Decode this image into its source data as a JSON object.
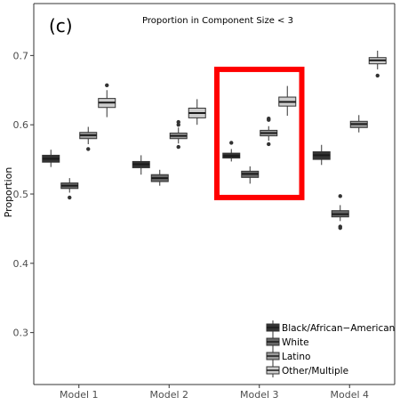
{
  "panel_label": "(c)",
  "chart_data": {
    "type": "boxplot",
    "title": "Proportion in Component Size < 3",
    "xlabel": "",
    "ylabel": "Proportion",
    "ylim": [
      0.225,
      0.775
    ],
    "yticks": [
      0.3,
      0.4,
      0.5,
      0.6,
      0.7
    ],
    "ytick_labels": [
      "0.3",
      "0.4",
      "0.5",
      "0.6",
      "0.7"
    ],
    "grid": false,
    "legend_position": "bottom-right",
    "categories": [
      "Model 1",
      "Model 2",
      "Model 3",
      "Model 4"
    ],
    "series": [
      {
        "name": "Black/African−American",
        "color": "#333333",
        "boxes": [
          {
            "whislo": 0.539,
            "q1": 0.546,
            "med": 0.551,
            "q3": 0.556,
            "whishi": 0.564,
            "outliers": []
          },
          {
            "whislo": 0.528,
            "q1": 0.538,
            "med": 0.543,
            "q3": 0.547,
            "whishi": 0.556,
            "outliers": []
          },
          {
            "whislo": 0.547,
            "q1": 0.552,
            "med": 0.555,
            "q3": 0.559,
            "whishi": 0.565,
            "outliers": [
              0.574
            ]
          },
          {
            "whislo": 0.542,
            "q1": 0.55,
            "med": 0.556,
            "q3": 0.561,
            "whishi": 0.571,
            "outliers": []
          }
        ]
      },
      {
        "name": "White",
        "color": "#686868",
        "boxes": [
          {
            "whislo": 0.502,
            "q1": 0.508,
            "med": 0.512,
            "q3": 0.516,
            "whishi": 0.523,
            "outliers": [
              0.495
            ]
          },
          {
            "whislo": 0.512,
            "q1": 0.518,
            "med": 0.523,
            "q3": 0.528,
            "whishi": 0.535,
            "outliers": []
          },
          {
            "whislo": 0.515,
            "q1": 0.524,
            "med": 0.529,
            "q3": 0.533,
            "whishi": 0.54,
            "outliers": []
          },
          {
            "whislo": 0.461,
            "q1": 0.467,
            "med": 0.471,
            "q3": 0.476,
            "whishi": 0.484,
            "outliers": [
              0.497,
              0.453,
              0.451
            ]
          }
        ]
      },
      {
        "name": "Latino",
        "color": "#9a9a9a",
        "boxes": [
          {
            "whislo": 0.572,
            "q1": 0.58,
            "med": 0.585,
            "q3": 0.589,
            "whishi": 0.597,
            "outliers": [
              0.565
            ]
          },
          {
            "whislo": 0.573,
            "q1": 0.58,
            "med": 0.584,
            "q3": 0.588,
            "whishi": 0.596,
            "outliers": [
              0.604,
              0.6,
              0.568
            ]
          },
          {
            "whislo": 0.577,
            "q1": 0.584,
            "med": 0.588,
            "q3": 0.592,
            "whishi": 0.598,
            "outliers": [
              0.609,
              0.607,
              0.572
            ]
          },
          {
            "whislo": 0.589,
            "q1": 0.596,
            "med": 0.601,
            "q3": 0.605,
            "whishi": 0.614,
            "outliers": []
          }
        ]
      },
      {
        "name": "Other/Multiple",
        "color": "#cdcdcd",
        "boxes": [
          {
            "whislo": 0.611,
            "q1": 0.625,
            "med": 0.632,
            "q3": 0.638,
            "whishi": 0.65,
            "outliers": [
              0.657
            ]
          },
          {
            "whislo": 0.6,
            "q1": 0.61,
            "med": 0.617,
            "q3": 0.624,
            "whishi": 0.637,
            "outliers": []
          },
          {
            "whislo": 0.613,
            "q1": 0.627,
            "med": 0.633,
            "q3": 0.64,
            "whishi": 0.656,
            "outliers": []
          },
          {
            "whislo": 0.68,
            "q1": 0.688,
            "med": 0.693,
            "q3": 0.697,
            "whishi": 0.707,
            "outliers": [
              0.671
            ]
          }
        ]
      }
    ],
    "annotations": [
      {
        "type": "highlight-rectangle",
        "category": "Model 3",
        "color": "#ff0000",
        "y_range": [
          0.495,
          0.68
        ]
      }
    ]
  }
}
